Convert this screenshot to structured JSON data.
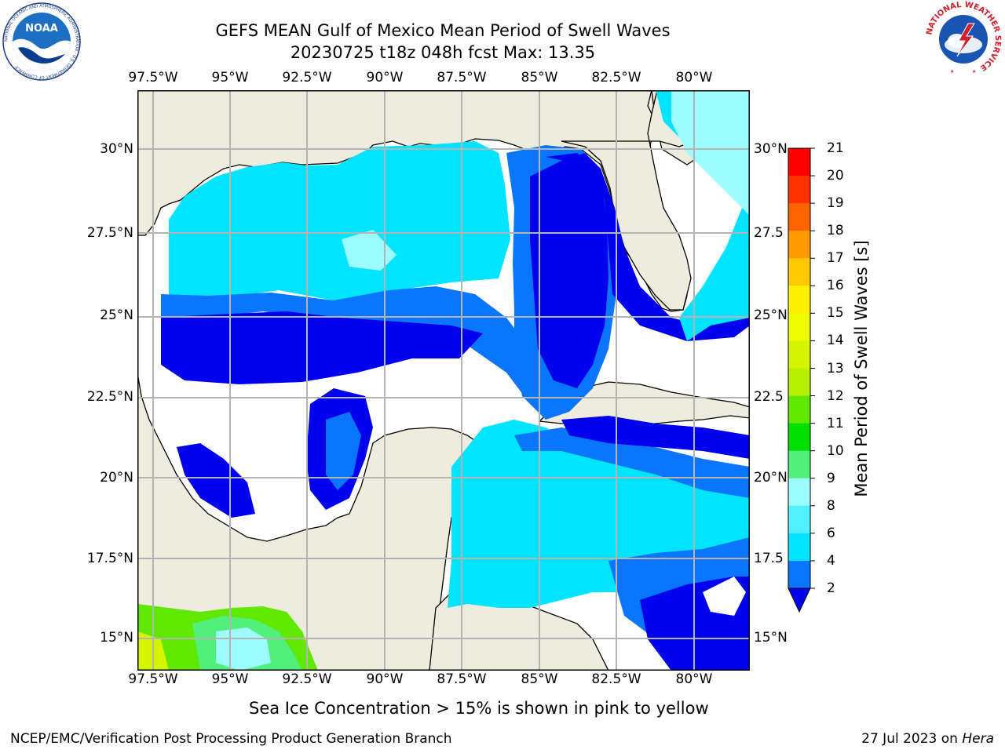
{
  "header": {
    "title_line1": "GEFS MEAN Gulf of Mexico Mean Period of Swell Waves",
    "title_line2": "20230725 t18z 048h fcst   Max: 13.35"
  },
  "map": {
    "lon_labels": [
      "97.5°W",
      "95°W",
      "92.5°W",
      "90°W",
      "87.5°W",
      "85°W",
      "82.5°W",
      "80°W"
    ],
    "lat_labels_left": [
      "30°N",
      "27.5°N",
      "25°N",
      "22.5°N",
      "20°N",
      "17.5°N",
      "15°N"
    ],
    "lat_labels_right": [
      "30°N",
      "27.5",
      "25°N",
      "22.5",
      "20°N",
      "17.5",
      "15°N"
    ],
    "land_color": "#eeecdc",
    "grid_color": "#b4b4b4"
  },
  "colorbar": {
    "title": "Mean Period of Swell Waves [s]",
    "ticks": [
      "2",
      "4",
      "6",
      "8",
      "9",
      "10",
      "11",
      "12",
      "13",
      "14",
      "15",
      "16",
      "17",
      "18",
      "19",
      "20",
      "21"
    ],
    "colors": [
      "#0000ee",
      "#0a76ff",
      "#00e4ff",
      "#50f0ff",
      "#9cfcff",
      "#50f07a",
      "#00e000",
      "#60e800",
      "#b4f000",
      "#d4f400",
      "#eefc00",
      "#fff000",
      "#ffc800",
      "#ff9a00",
      "#ff6400",
      "#ff3200",
      "#ff0000"
    ]
  },
  "footnote": "Sea Ice Concentration > 15% is shown in pink to yellow",
  "credits": {
    "left": "NCEP/EMC/Verification Post Processing Product Generation Branch",
    "right_date": "27 Jul 2023 on ",
    "right_host": "Hera"
  },
  "logos": {
    "noaa_text": "NOAA",
    "noaa_ring": "NATIONAL OCEANIC AND ATMOSPHERIC ADMINISTRATION · U.S. DEPARTMENT OF COMMERCE",
    "nws_ring": "NATIONAL WEATHER SERVICE"
  }
}
